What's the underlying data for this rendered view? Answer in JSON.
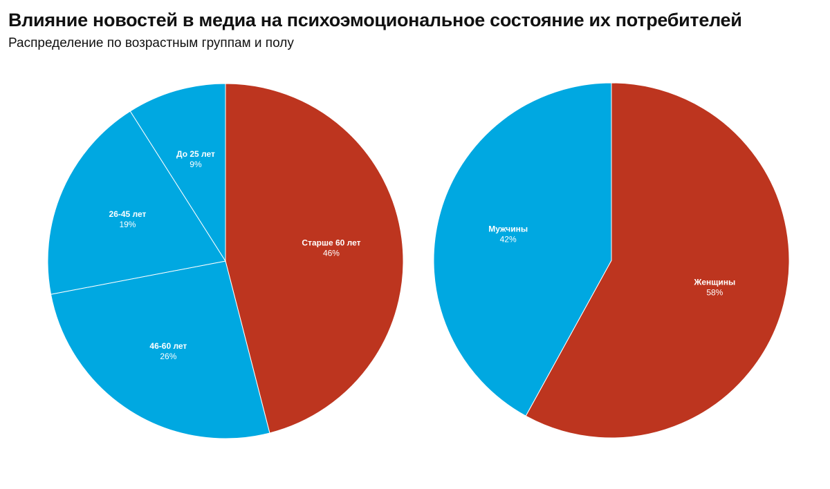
{
  "title": "Влияние новостей в медиа на психоэмоциональное состояние их потребителей",
  "subtitle": "Распределение по возрастным группам и полу",
  "colors": {
    "red": "#bd351f",
    "blue": "#00a8e1"
  },
  "chart_data": [
    {
      "type": "pie",
      "start": "top",
      "direction": "clockwise",
      "slices": [
        {
          "label": "Старше 60 лет",
          "value": 46,
          "value_label": "46%",
          "color": "#bd351f"
        },
        {
          "label": "46-60 лет",
          "value": 26,
          "value_label": "26%",
          "color": "#00a8e1"
        },
        {
          "label": "26-45 лет",
          "value": 19,
          "value_label": "19%",
          "color": "#00a8e1"
        },
        {
          "label": "До 25 лет",
          "value": 9,
          "value_label": "9%",
          "color": "#00a8e1"
        }
      ]
    },
    {
      "type": "pie",
      "start": "top",
      "direction": "clockwise",
      "slices": [
        {
          "label": "Женщины",
          "value": 58,
          "value_label": "58%",
          "color": "#bd351f"
        },
        {
          "label": "Мужчины",
          "value": 42,
          "value_label": "42%",
          "color": "#00a8e1"
        }
      ]
    }
  ]
}
